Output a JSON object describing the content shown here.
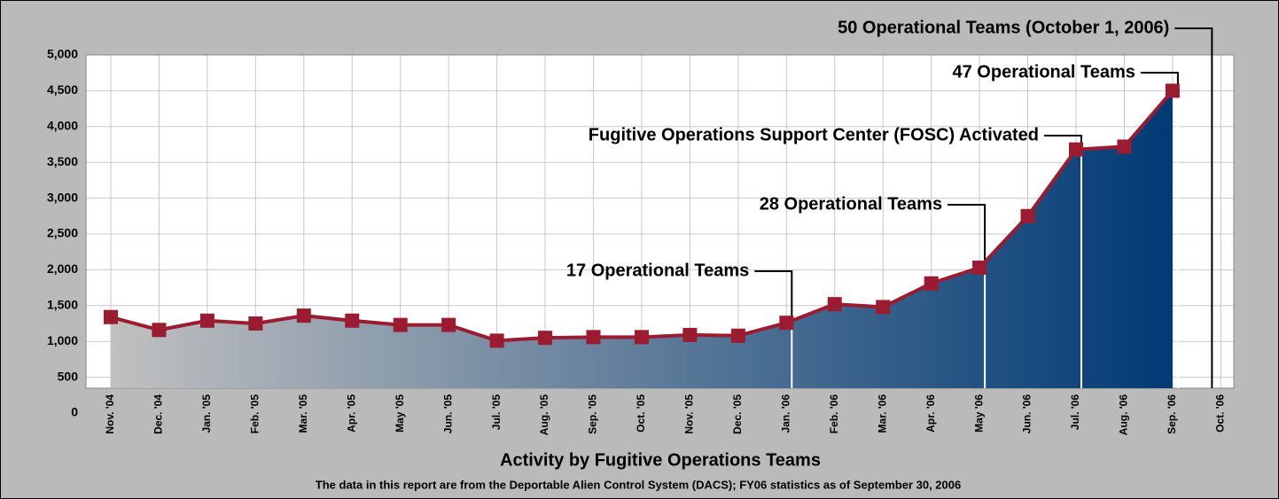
{
  "chart_data": {
    "type": "area",
    "title": "Activity by Fugitive Operations Teams",
    "subtitle": "The data in this report are from the Deportable Alien Control System (DACS); FY06 statistics as of September 30, 2006",
    "categories": [
      "Nov. '04",
      "Dec. '04",
      "Jan. '05",
      "Feb. '05",
      "Mar. '05",
      "Apr. '05",
      "May '05",
      "Jun. '05",
      "Jul. '05",
      "Aug. '05",
      "Sep. '05",
      "Oct. '05",
      "Nov. '05",
      "Dec. '05",
      "Jan. '06",
      "Feb. '06",
      "Mar. '06",
      "Apr. '06",
      "May '06",
      "Jun. '06",
      "Jul. '06",
      "Aug. '06",
      "Sep. '06",
      "Oct. '06"
    ],
    "values": [
      1340,
      1160,
      1290,
      1250,
      1360,
      1290,
      1230,
      1230,
      1010,
      1050,
      1060,
      1060,
      1090,
      1080,
      1260,
      1520,
      1480,
      1810,
      2030,
      2750,
      3680,
      3720,
      4500,
      null
    ],
    "color": "#9b1b30",
    "fill_colors": [
      "#c0c0c0",
      "#003a75"
    ],
    "ylim": [
      0,
      5000
    ],
    "yticks": [
      0,
      500,
      {
        "value": 1000,
        "label": "1,000"
      },
      {
        "value": 1500,
        "label": "1,500"
      },
      {
        "value": 2000,
        "label": "2,000"
      },
      {
        "value": 2500,
        "label": "2,500"
      },
      {
        "value": 3000,
        "label": "3,000"
      },
      {
        "value": 3500,
        "label": "3,500"
      },
      {
        "value": 4000,
        "label": "4,000"
      },
      {
        "value": 4500,
        "label": "4,500"
      },
      {
        "value": 5000,
        "label": "5,000"
      }
    ],
    "grid": true,
    "annotations": [
      {
        "text": "17 Operational Teams",
        "category": "Jan. '06"
      },
      {
        "text": "28 Operational Teams",
        "category": "May '06"
      },
      {
        "text": "Fugitive Operations Support Center (FOSC) Activated",
        "category": "Jul. '06"
      },
      {
        "text": "47 Operational Teams",
        "category": "Sep. '06"
      },
      {
        "text": "50 Operational Teams (October 1, 2006)",
        "category": "Oct. '06"
      }
    ]
  }
}
